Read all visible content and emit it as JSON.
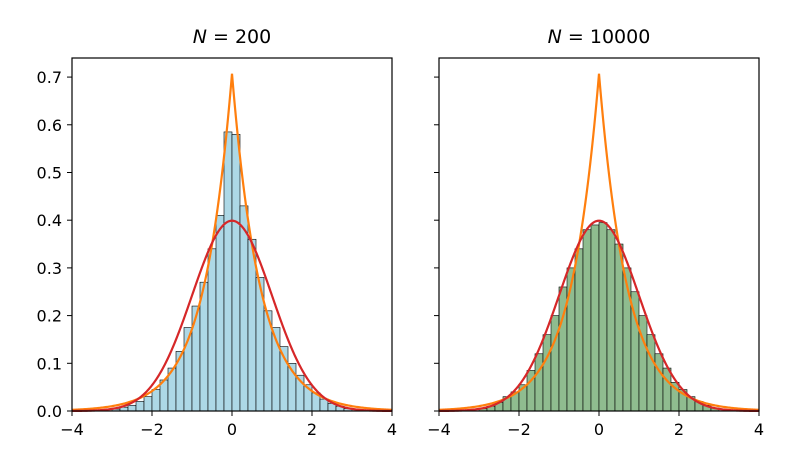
{
  "chart_data": [
    {
      "type": "bar",
      "title_var": "N",
      "title_eq": " = ",
      "title_value": "200",
      "xlim": [
        -4,
        4
      ],
      "ylim": [
        0,
        0.74
      ],
      "xticks": [
        -4,
        -2,
        0,
        2,
        4
      ],
      "xtick_labels": [
        "−4",
        "−2",
        "0",
        "2",
        "4"
      ],
      "yticks": [
        0.0,
        0.1,
        0.2,
        0.3,
        0.4,
        0.5,
        0.6,
        0.7
      ],
      "ytick_labels": [
        "0.0",
        "0.1",
        "0.2",
        "0.3",
        "0.4",
        "0.5",
        "0.6",
        "0.7"
      ],
      "show_ytick_labels": true,
      "hist_color": "#add8e6",
      "bin_edges": [
        -3.0,
        -2.8,
        -2.6,
        -2.4,
        -2.2,
        -2.0,
        -1.8,
        -1.6,
        -1.4,
        -1.2,
        -1.0,
        -0.8,
        -0.6,
        -0.4,
        -0.2,
        0.0,
        0.2,
        0.4,
        0.6,
        0.8,
        1.0,
        1.2,
        1.4,
        1.6,
        1.8,
        2.0,
        2.2,
        2.4,
        2.6,
        2.8,
        3.0
      ],
      "counts": [
        0.004,
        0.008,
        0.012,
        0.02,
        0.03,
        0.045,
        0.065,
        0.09,
        0.125,
        0.175,
        0.22,
        0.27,
        0.34,
        0.41,
        0.585,
        0.58,
        0.43,
        0.36,
        0.28,
        0.21,
        0.175,
        0.135,
        0.1,
        0.075,
        0.055,
        0.038,
        0.025,
        0.016,
        0.01,
        0.005
      ],
      "series": [
        {
          "kind": "laplace",
          "color": "#ff7f0e",
          "peak": 0.707
        },
        {
          "kind": "gaussian",
          "color": "#d62728",
          "peak": 0.399
        }
      ]
    },
    {
      "type": "bar",
      "title_var": "N",
      "title_eq": " = ",
      "title_value": "10000",
      "xlim": [
        -4,
        4
      ],
      "ylim": [
        0,
        0.74
      ],
      "xticks": [
        -4,
        -2,
        0,
        2,
        4
      ],
      "xtick_labels": [
        "−4",
        "−2",
        "0",
        "2",
        "4"
      ],
      "yticks": [
        0.0,
        0.1,
        0.2,
        0.3,
        0.4,
        0.5,
        0.6,
        0.7
      ],
      "ytick_labels": [],
      "show_ytick_labels": false,
      "hist_color": "#8fbc8f",
      "bin_edges": [
        -3.0,
        -2.8,
        -2.6,
        -2.4,
        -2.2,
        -2.0,
        -1.8,
        -1.6,
        -1.4,
        -1.2,
        -1.0,
        -0.8,
        -0.6,
        -0.4,
        -0.2,
        0.0,
        0.2,
        0.4,
        0.6,
        0.8,
        1.0,
        1.2,
        1.4,
        1.6,
        1.8,
        2.0,
        2.2,
        2.4,
        2.6,
        2.8,
        3.0
      ],
      "counts": [
        0.005,
        0.01,
        0.018,
        0.03,
        0.04,
        0.055,
        0.085,
        0.12,
        0.16,
        0.2,
        0.26,
        0.3,
        0.34,
        0.38,
        0.39,
        0.395,
        0.38,
        0.35,
        0.3,
        0.25,
        0.2,
        0.16,
        0.12,
        0.09,
        0.06,
        0.045,
        0.03,
        0.02,
        0.012,
        0.006
      ],
      "series": [
        {
          "kind": "laplace",
          "color": "#ff7f0e",
          "peak": 0.707
        },
        {
          "kind": "gaussian",
          "color": "#d62728",
          "peak": 0.399
        }
      ]
    }
  ]
}
